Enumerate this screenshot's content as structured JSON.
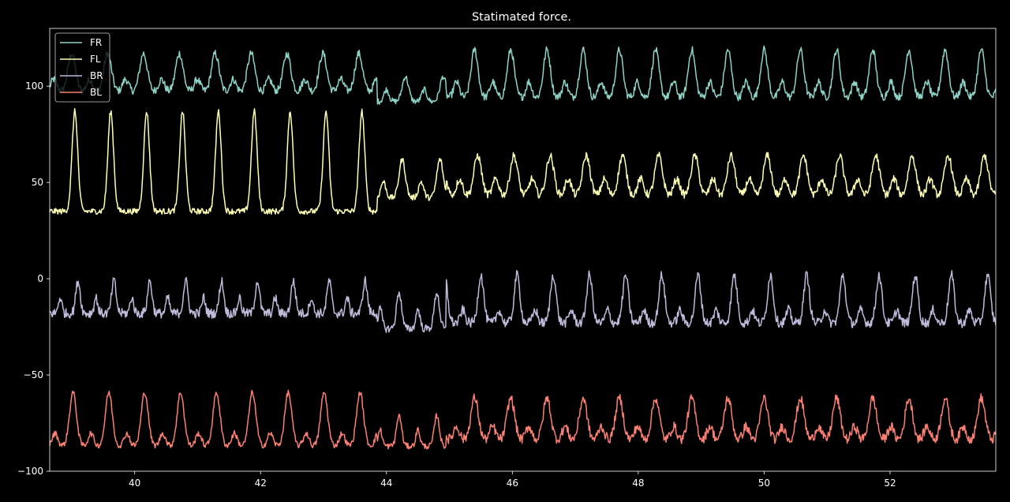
{
  "chart_data": {
    "type": "line",
    "title": "Statimated force.",
    "xlabel": "",
    "ylabel": "",
    "xlim": [
      38.65,
      53.68
    ],
    "ylim": [
      -100,
      130
    ],
    "xticks": [
      40,
      42,
      44,
      46,
      48,
      50,
      52
    ],
    "yticks": [
      100,
      50,
      0,
      -50,
      -100
    ],
    "xtick_labels": [
      "40",
      "42",
      "44",
      "46",
      "48",
      "50",
      "52"
    ],
    "ytick_labels": [
      "100",
      "50",
      "0",
      "−50",
      "−100"
    ],
    "background": "#000000",
    "foreground": "#ffffff",
    "legend_position": "top-left",
    "grid": false,
    "segments": [
      {
        "start": 38.65,
        "end": 43.85,
        "period": 0.57,
        "first_peak": 39.0
      },
      {
        "start": 43.85,
        "end": 44.95,
        "period": 0.6,
        "first_peak": 44.2
      },
      {
        "start": 44.95,
        "end": 53.68,
        "period": 0.575,
        "first_peak": 45.4
      }
    ],
    "series": [
      {
        "name": "FR",
        "color": "#8dd3c7",
        "pattern": "mixed",
        "segments": [
          {
            "baseline": 97,
            "peak": 117,
            "width": 0.06,
            "phase": 0.0,
            "secondary": 0.55,
            "noise": 2.0
          },
          {
            "baseline": 92,
            "peak": 105,
            "width": 0.05,
            "phase": 0.1,
            "secondary": 0.8,
            "noise": 1.5
          },
          {
            "baseline": 94,
            "peak": 119,
            "width": 0.055,
            "phase": 0.0,
            "secondary": 0.55,
            "noise": 2.0
          }
        ]
      },
      {
        "name": "FL",
        "color": "#ffffb3",
        "pattern": "spikes",
        "segments": [
          {
            "baseline": 35,
            "peak": 87,
            "width": 0.045,
            "phase": 0.05,
            "secondary": 0.0,
            "noise": 1.5
          },
          {
            "baseline": 42,
            "peak": 62,
            "width": 0.05,
            "phase": 0.05,
            "secondary": 0.7,
            "noise": 1.5
          },
          {
            "baseline": 43,
            "peak": 64,
            "width": 0.06,
            "phase": 0.05,
            "secondary": 0.7,
            "noise": 2.0
          }
        ]
      },
      {
        "name": "BR",
        "color": "#bebada",
        "pattern": "mixed",
        "segments": [
          {
            "baseline": -18,
            "peak": -1,
            "width": 0.035,
            "phase": 0.1,
            "secondary": 0.8,
            "noise": 2.5
          },
          {
            "baseline": -26,
            "peak": -7,
            "width": 0.04,
            "phase": 0.0,
            "secondary": 0.9,
            "noise": 2.0
          },
          {
            "baseline": -23,
            "peak": 2,
            "width": 0.045,
            "phase": 0.1,
            "secondary": 0.45,
            "noise": 2.5
          }
        ]
      },
      {
        "name": "BL",
        "color": "#fb8072",
        "pattern": "mixed",
        "segments": [
          {
            "baseline": -87,
            "peak": -59,
            "width": 0.055,
            "phase": 0.02,
            "secondary": 0.4,
            "noise": 1.5
          },
          {
            "baseline": -87,
            "peak": -71,
            "width": 0.04,
            "phase": 0.0,
            "secondary": 0.9,
            "noise": 1.5
          },
          {
            "baseline": -84,
            "peak": -62,
            "width": 0.06,
            "phase": 0.0,
            "secondary": 0.55,
            "noise": 2.5
          }
        ]
      }
    ]
  }
}
